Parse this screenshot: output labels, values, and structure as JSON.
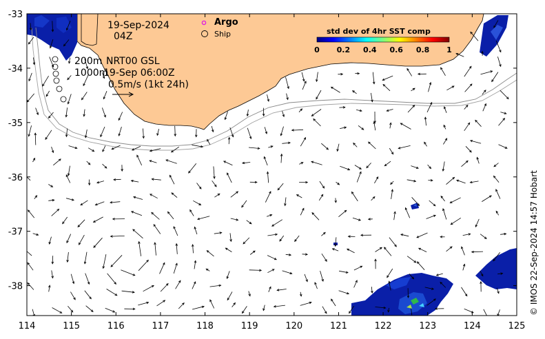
{
  "map": {
    "date": "19-Sep-2024",
    "time": "04Z",
    "depth_top": "200m",
    "depth_bottom": "1000m",
    "product": "NRT00 GSL",
    "product_time": "19-Sep 06:00Z",
    "scale_vector": "0.5m/s (1kt 24h)",
    "credit": "© IMOS 22-Sep-2024 14:57 Hobart",
    "legend": {
      "argo": "Argo",
      "ship": "Ship",
      "argo_color": "#e020e0"
    },
    "colorbar": {
      "title": "std dev of 4hr SST comp",
      "ticks": [
        "0",
        "0.2",
        "0.4",
        "0.6",
        "0.8",
        "1"
      ],
      "colors": [
        "#00007f",
        "#0000ff",
        "#007fff",
        "#00ffff",
        "#7fff7f",
        "#ffff00",
        "#ff7f00",
        "#ff0000",
        "#7f0000"
      ]
    },
    "x_ticks": [
      "114",
      "115",
      "116",
      "117",
      "118",
      "119",
      "120",
      "121",
      "122",
      "123",
      "124",
      "125"
    ],
    "y_ticks": [
      "-33",
      "-34",
      "-35",
      "-36",
      "-37",
      "-38"
    ],
    "x_range": [
      114,
      125
    ],
    "y_range": [
      -38.55,
      -33
    ],
    "land_color": "#fdc995"
  }
}
